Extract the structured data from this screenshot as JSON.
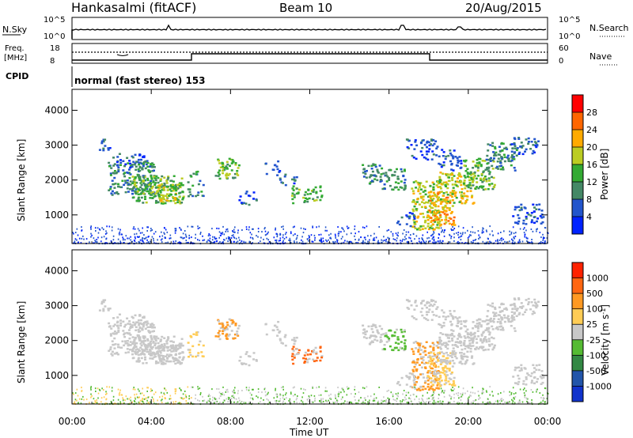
{
  "header": {
    "station": "Hankasalmi (fitACF)",
    "beam": "Beam 10",
    "date": "20/Aug/2015"
  },
  "noise_panel": {
    "left_label": "N.Sky",
    "right_label": "N.Search",
    "left_ticks": [
      "10^5",
      "10^0"
    ],
    "right_ticks": [
      "10^5",
      "10^0"
    ]
  },
  "freq_panel": {
    "left_label_line1": "Freq.",
    "left_label_line2": "[MHz]",
    "right_label": "Nave",
    "left_ticks": [
      "18",
      "8"
    ],
    "right_ticks": [
      "60",
      "0"
    ]
  },
  "cpid_panel": {
    "label": "CPID",
    "mode": "normal (fast stereo) 153"
  },
  "chart_data": [
    {
      "type": "heatmap",
      "name": "power",
      "ylabel": "Slant Range [km]",
      "ylim": [
        180,
        4600
      ],
      "yticks": [
        "1000",
        "2000",
        "3000",
        "4000"
      ],
      "colorbar_label": "Power [dB]",
      "colorbar_ticks": [
        "4",
        "8",
        "12",
        "16",
        "20",
        "24",
        "28"
      ],
      "colors": [
        "#0022ff",
        "#2255cc",
        "#448866",
        "#33aa33",
        "#bbcc22",
        "#ffaa00",
        "#ff6600",
        "#ff0000"
      ]
    },
    {
      "type": "heatmap",
      "name": "velocity",
      "ylabel": "Slant Range [km]",
      "ylim": [
        180,
        4600
      ],
      "yticks": [
        "1000",
        "2000",
        "3000",
        "4000"
      ],
      "colorbar_label": "Velocity [m s^-1]",
      "colorbar_ticks": [
        "1000",
        "500",
        "100",
        "25",
        "-25",
        "-100",
        "-500",
        "-1000"
      ],
      "colors": [
        "#1133cc",
        "#2255aa",
        "#338844",
        "#55bb33",
        "#c8c8c8",
        "#ffcc55",
        "#ff9922",
        "#ff6611",
        "#ff2200"
      ]
    }
  ],
  "time_axis": {
    "label": "Time UT",
    "ticks": [
      "00:00",
      "04:00",
      "08:00",
      "12:00",
      "16:00",
      "20:00",
      "00:00"
    ]
  }
}
